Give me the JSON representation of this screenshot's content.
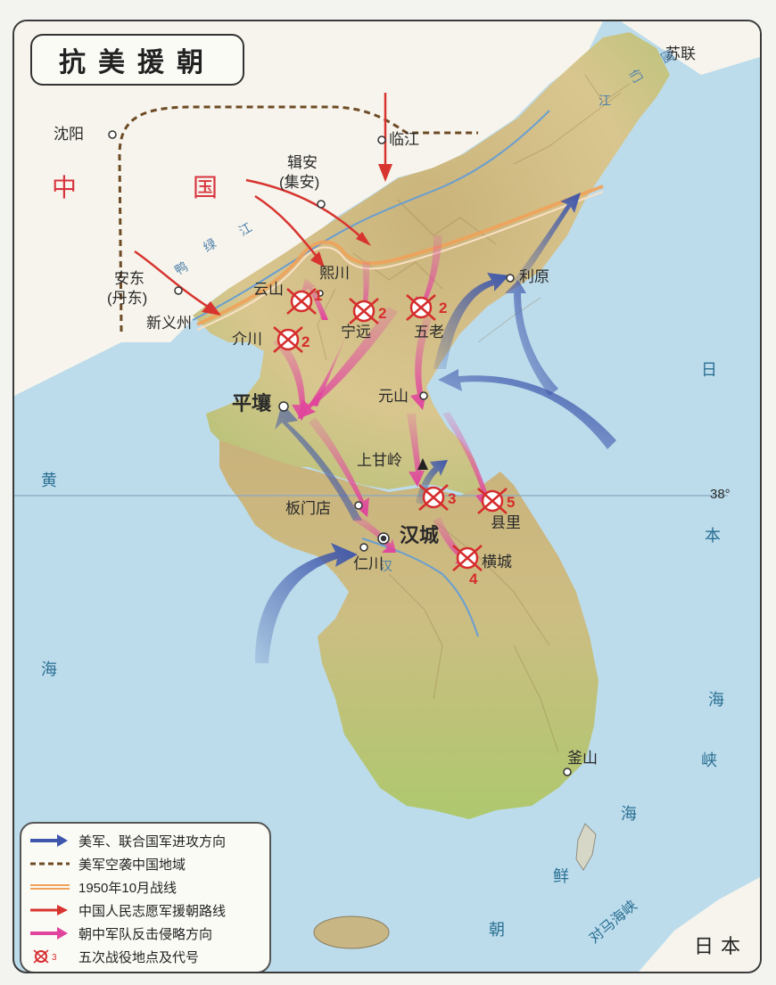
{
  "title": "抗美援朝",
  "regions": {
    "china_1": "中",
    "china_2": "国",
    "ussr": "苏联",
    "japan": "日本"
  },
  "rivers": {
    "yalu_1": "鸭",
    "yalu_2": "绿",
    "yalu_3": "江",
    "tumen_1": "们",
    "tumen_2": "图",
    "tumen_3": "江",
    "han": "汉"
  },
  "cities": {
    "shenyang": "沈阳",
    "linjiang": "临江",
    "jian": "辑安",
    "jian_alt": "(集安)",
    "andong": "安东",
    "andong_alt": "(丹东)",
    "sinuiju": "新义州",
    "unsan": "云山",
    "huichon": "熙川",
    "riwon": "利原",
    "kaechon": "介川",
    "yongwon": "宁远",
    "onoro": "五老",
    "wonsan": "元山",
    "pyongyang": "平壤",
    "sanggamryong": "上甘岭",
    "panmunjom": "板门店",
    "seoul": "汉城",
    "incheon": "仁川",
    "hyonri": "县里",
    "hoengseong": "横城",
    "busan": "釜山"
  },
  "battles": {
    "b1": "1",
    "b2a": "2",
    "b2b": "2",
    "b2c": "2",
    "b3": "3",
    "b4": "4",
    "b5": "5"
  },
  "parallel": "38°",
  "seas": {
    "yellow_1": "黄",
    "yellow_2": "海",
    "japan_1": "日",
    "japan_2": "本",
    "japan_3": "海",
    "strait_1": "峡",
    "korea_strait_1": "海",
    "korea_strait_2": "鲜",
    "korea_strait_3": "朝",
    "tsushima_strait": "对马海峡"
  },
  "legend": [
    "美军、联合国军进攻方向",
    "美军空袭中国地域",
    "1950年10月战线",
    "中国人民志愿军援朝路线",
    "朝中军队反击侵略方向",
    "五次战役地点及代号"
  ],
  "legend_sample_number": "3",
  "colors": {
    "us_offensive": "#3e57ad",
    "air_raid_line": "#6d4b25",
    "front_line": "#f0a25a",
    "cpv_route": "#d8342f",
    "counterattack": "#e0449c",
    "sea": "#bcdcec"
  }
}
